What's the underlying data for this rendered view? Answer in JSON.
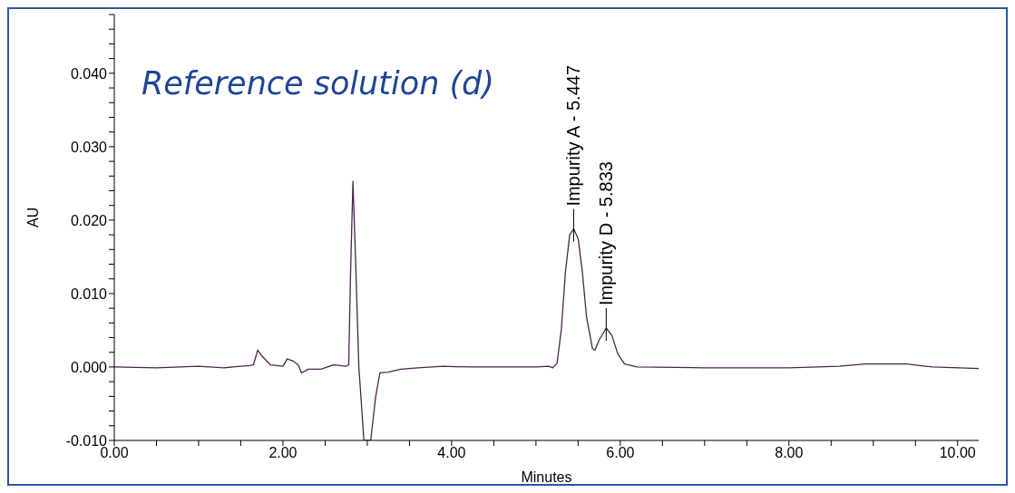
{
  "chart_data": {
    "type": "line",
    "title": "Reference solution (d)",
    "xlabel": "Minutes",
    "ylabel": "AU",
    "x": [
      0,
      0.5,
      1.0,
      1.3,
      1.6,
      1.65,
      1.7,
      1.75,
      1.85,
      2.0,
      2.05,
      2.12,
      2.18,
      2.22,
      2.3,
      2.45,
      2.6,
      2.75,
      2.78,
      2.8,
      2.83,
      2.86,
      2.9,
      2.96,
      3.04,
      3.1,
      3.15,
      3.25,
      3.4,
      3.6,
      3.9,
      4.2,
      5.0,
      5.15,
      5.2,
      5.25,
      5.3,
      5.35,
      5.4,
      5.447,
      5.5,
      5.55,
      5.6,
      5.67,
      5.7,
      5.75,
      5.833,
      5.9,
      5.97,
      6.05,
      6.2,
      7.0,
      8.0,
      8.6,
      8.9,
      9.4,
      9.7,
      10.25
    ],
    "series": [
      {
        "color": "#4b2450",
        "values": [
          0,
          -0.0001,
          0.0001,
          -0.0001,
          0.0002,
          0.0003,
          0.0023,
          0.0015,
          0.0003,
          0.0001,
          0.0011,
          0.0008,
          0.0003,
          -0.0008,
          -0.0003,
          -0.0003,
          0.0003,
          0.0001,
          0.0003,
          0.012,
          0.0253,
          0.015,
          0,
          -0.01,
          -0.01,
          -0.004,
          -0.0008,
          -0.0007,
          -0.0003,
          -0.0001,
          0.0001,
          0,
          0,
          0.0001,
          -0.0001,
          0.0005,
          0.005,
          0.013,
          0.018,
          0.0188,
          0.0175,
          0.013,
          0.0068,
          0.0025,
          0.0023,
          0.0037,
          0.0053,
          0.0043,
          0.0018,
          0.0004,
          0,
          -0.0001,
          -0.0001,
          0.0001,
          0.0004,
          0.0004,
          0,
          -0.0002
        ]
      }
    ],
    "annotations": [
      {
        "text": "Impurity A - 5.447",
        "x": 5.447,
        "y": 0.0188
      },
      {
        "text": "Impurity D - 5.833",
        "x": 5.833,
        "y": 0.0053
      }
    ],
    "xlim": [
      0,
      10.25
    ],
    "xticks": [
      {
        "value": 0,
        "label": "0.00"
      },
      {
        "value": 0.5,
        "label": null
      },
      {
        "value": 1,
        "label": null
      },
      {
        "value": 1.5,
        "label": null
      },
      {
        "value": 2,
        "label": "2.00"
      },
      {
        "value": 2.5,
        "label": null
      },
      {
        "value": 3,
        "label": null
      },
      {
        "value": 3.5,
        "label": null
      },
      {
        "value": 4,
        "label": "4.00"
      },
      {
        "value": 4.5,
        "label": null
      },
      {
        "value": 5,
        "label": null
      },
      {
        "value": 5.5,
        "label": null
      },
      {
        "value": 6,
        "label": "6.00"
      },
      {
        "value": 6.5,
        "label": null
      },
      {
        "value": 7,
        "label": null
      },
      {
        "value": 7.5,
        "label": null
      },
      {
        "value": 8,
        "label": "8.00"
      },
      {
        "value": 8.5,
        "label": null
      },
      {
        "value": 9,
        "label": null
      },
      {
        "value": 9.5,
        "label": null
      },
      {
        "value": 10,
        "label": "10.00"
      }
    ],
    "ylim": [
      -0.01,
      0.048
    ],
    "yticks": [
      {
        "value": -0.01,
        "label": "-0.010"
      },
      {
        "value": -0.008,
        "label": null
      },
      {
        "value": -0.006,
        "label": null
      },
      {
        "value": -0.004,
        "label": null
      },
      {
        "value": -0.002,
        "label": null
      },
      {
        "value": 0,
        "label": "0.000"
      },
      {
        "value": 0.002,
        "label": null
      },
      {
        "value": 0.004,
        "label": null
      },
      {
        "value": 0.006,
        "label": null
      },
      {
        "value": 0.008,
        "label": null
      },
      {
        "value": 0.01,
        "label": "0.010"
      },
      {
        "value": 0.012,
        "label": null
      },
      {
        "value": 0.014,
        "label": null
      },
      {
        "value": 0.016,
        "label": null
      },
      {
        "value": 0.018,
        "label": null
      },
      {
        "value": 0.02,
        "label": "0.020"
      },
      {
        "value": 0.022,
        "label": null
      },
      {
        "value": 0.024,
        "label": null
      },
      {
        "value": 0.026,
        "label": null
      },
      {
        "value": 0.028,
        "label": null
      },
      {
        "value": 0.03,
        "label": "0.030"
      },
      {
        "value": 0.032,
        "label": null
      },
      {
        "value": 0.034,
        "label": null
      },
      {
        "value": 0.036,
        "label": null
      },
      {
        "value": 0.038,
        "label": null
      },
      {
        "value": 0.04,
        "label": "0.040"
      },
      {
        "value": 0.042,
        "label": null
      },
      {
        "value": 0.044,
        "label": null
      },
      {
        "value": 0.046,
        "label": null
      },
      {
        "value": 0.048,
        "label": null
      }
    ],
    "grid": false,
    "legend": false,
    "marker": "none",
    "line_style": "solid"
  }
}
